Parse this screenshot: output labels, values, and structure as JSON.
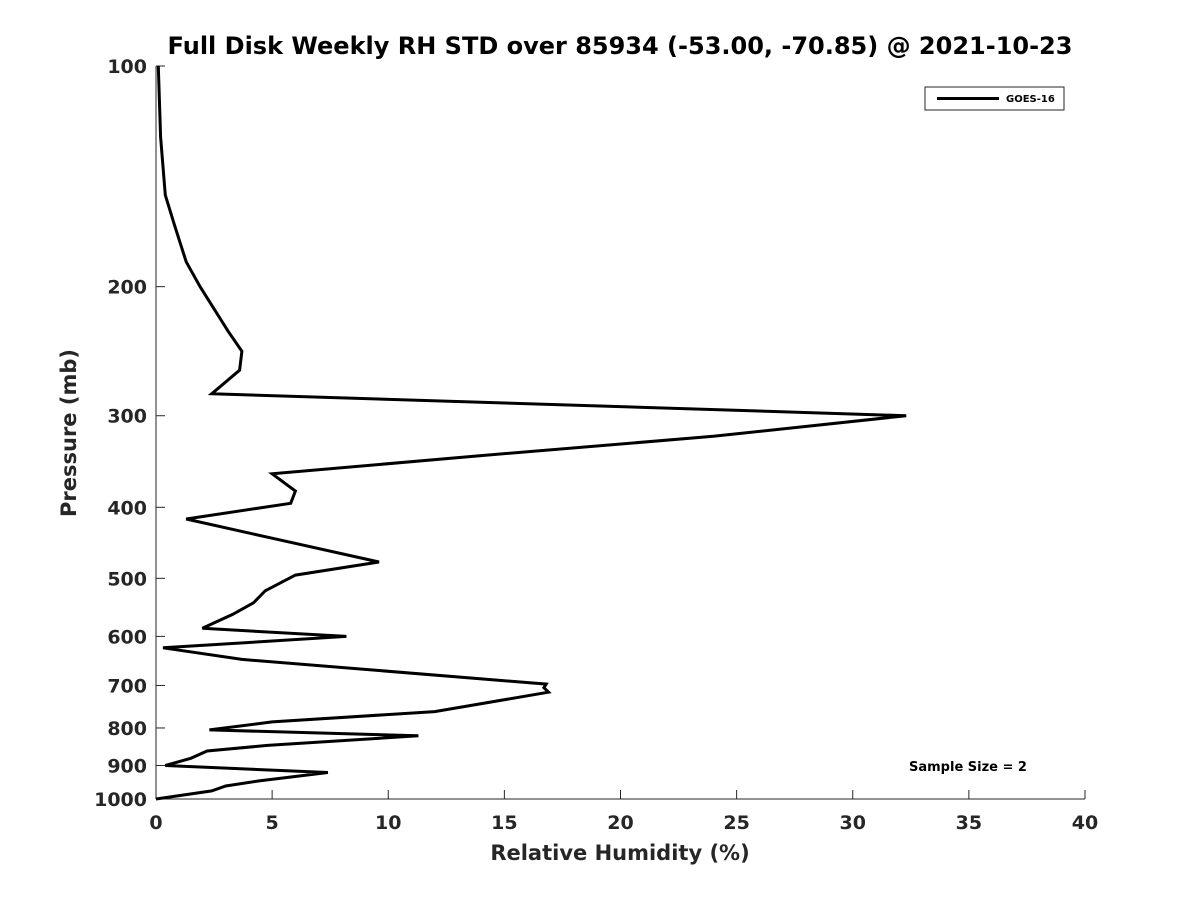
{
  "chart_data": {
    "type": "line",
    "title": "Full Disk Weekly RH STD over 85934 (-53.00, -70.85) @ 2021-10-23",
    "xlabel": "Relative Humidity (%)",
    "ylabel": "Pressure (mb)",
    "xlim": [
      0,
      40
    ],
    "ylim": [
      100,
      1000
    ],
    "yscale": "log",
    "y_reversed": true,
    "x_ticks": [
      0,
      5,
      10,
      15,
      20,
      25,
      30,
      35,
      40
    ],
    "y_ticks": [
      100,
      200,
      300,
      400,
      500,
      600,
      700,
      800,
      900,
      1000
    ],
    "legend_position": "top-right",
    "series": [
      {
        "name": "GOES-16",
        "color": "#000000",
        "x": [
          0.1,
          0.2,
          0.4,
          0.8,
          1.3,
          1.9,
          3.1,
          3.7,
          3.6,
          2.4,
          32.3,
          24,
          14,
          5,
          6,
          5.8,
          1.3,
          4.9,
          9.6,
          6,
          4.7,
          4.2,
          3.3,
          2,
          8.2,
          0.3,
          3.7,
          16.8,
          16.7,
          16.9,
          12,
          5,
          2.3,
          11.3,
          4.8,
          2.2,
          1.5,
          0.4,
          7.4,
          4.4,
          3,
          2.4,
          0
        ],
        "y": [
          100,
          125,
          150,
          165,
          185,
          200,
          230,
          245,
          260,
          280,
          300,
          320,
          340,
          360,
          380,
          395,
          415,
          440,
          475,
          495,
          520,
          540,
          560,
          585,
          600,
          622,
          645,
          697,
          705,
          715,
          760,
          785,
          805,
          820,
          845,
          860,
          880,
          900,
          920,
          945,
          960,
          975,
          1000
        ]
      }
    ],
    "annotation": "Sample Size = 2"
  }
}
